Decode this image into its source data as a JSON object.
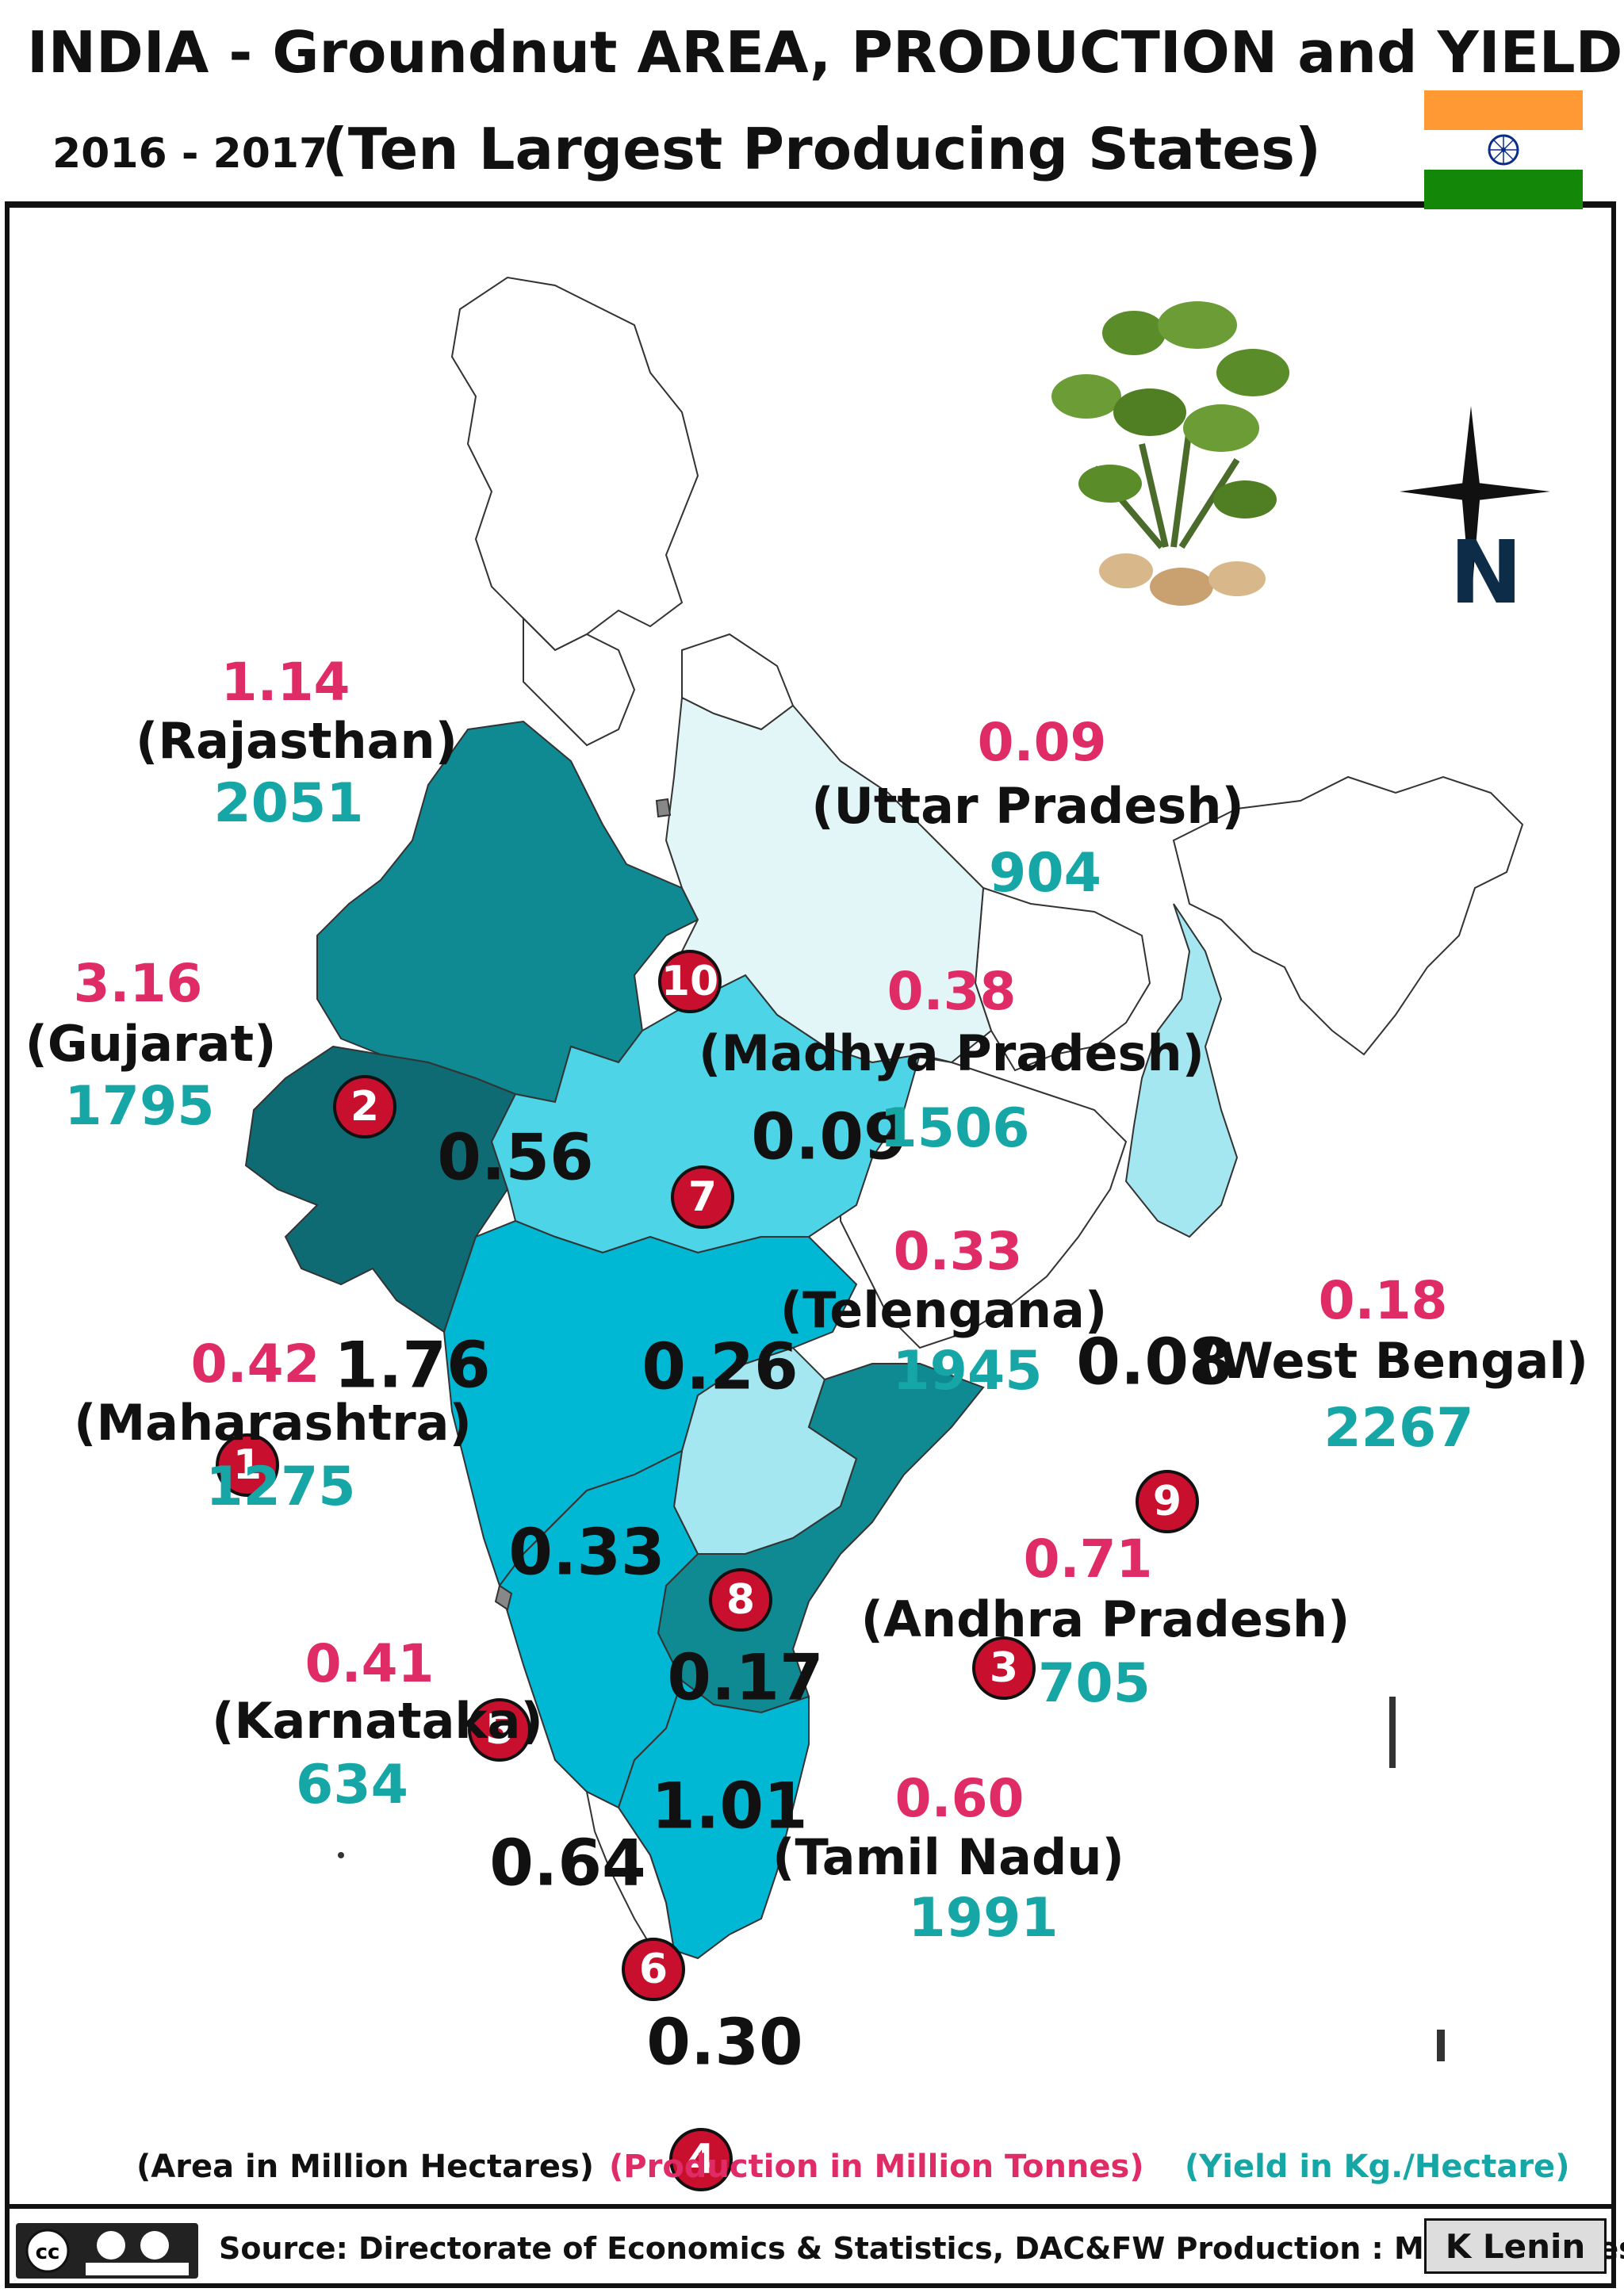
{
  "header": {
    "title": "INDIA - Groundnut   AREA, PRODUCTION and  YIELD",
    "subtitle_years": "2016 - 2017",
    "subtitle_main": "(Ten Largest Producing States)"
  },
  "colors": {
    "saffron": "#ff9933",
    "white": "#ffffff",
    "green": "#138808",
    "production": "#e02c66",
    "yield": "#16a6a6",
    "rank_circle": "#c8102e",
    "state_dark": "#0e6b73",
    "state_teal": "#0f8a93",
    "state_medium": "#00b8d4",
    "state_light": "#4dd4e6",
    "state_pale": "#a5e7f0",
    "state_very_pale": "#e2f6f8"
  },
  "compass": {
    "label": "N"
  },
  "states": [
    {
      "rank": "1",
      "name": "(Gujarat)",
      "area": "1.76",
      "production": "3.16",
      "yield": "1795"
    },
    {
      "rank": "2",
      "name": "(Rajasthan)",
      "area": "0.56",
      "production": "1.14",
      "yield": "2051"
    },
    {
      "rank": "3",
      "name": "(Andhra Pradesh)",
      "area": "1.01",
      "production": "0.71",
      "yield": "705"
    },
    {
      "rank": "4",
      "name": "(Tamil Nadu)",
      "area": "0.30",
      "production": "0.60",
      "yield": "1991"
    },
    {
      "rank": "5",
      "name": "(Maharashtra)",
      "area": "0.33",
      "production": "0.42",
      "yield": "1275"
    },
    {
      "rank": "6",
      "name": "(Karnataka)",
      "area": "0.64",
      "production": "0.41",
      "yield": "634"
    },
    {
      "rank": "7",
      "name": "(Madhya Pradesh)",
      "area": "0.26",
      "production": "0.38",
      "yield": "1506"
    },
    {
      "rank": "8",
      "name": "(Telengana)",
      "area": "0.17",
      "production": "0.33",
      "yield": "1945"
    },
    {
      "rank": "9",
      "name": "(West Bengal)",
      "area": "0.08",
      "production": "0.18",
      "yield": "2267"
    },
    {
      "rank": "10",
      "name": "(Uttar  Pradesh)",
      "area": "0.09",
      "production": "0.09",
      "yield": "904"
    }
  ],
  "legend": {
    "area": "(Area in Million Hectares)",
    "production": "(Production in Million Tonnes)",
    "yield": "(Yield in Kg./Hectare)"
  },
  "footer": {
    "source": "Source: Directorate of Economics & Statistics, DAC&FW  Production : Million Tonnes",
    "author": "K Lenin",
    "license": "cc BY SA"
  }
}
